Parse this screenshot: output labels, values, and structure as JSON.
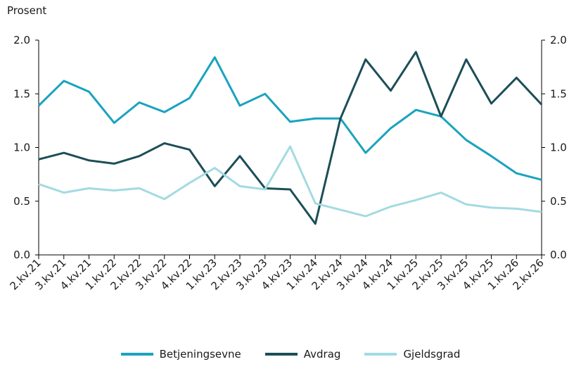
{
  "chart_data": {
    "type": "line",
    "ylabel": "Prosent",
    "ylim": [
      0,
      2.0
    ],
    "yticks": [
      "0.0",
      "0.5",
      "1.0",
      "1.5",
      "2.0"
    ],
    "secondary_yaxis": true,
    "grid": false,
    "legend_position": "bottom",
    "categories": [
      "2.kv.21",
      "3.kv.21",
      "4.kv.21",
      "1.kv.22",
      "2.kv.22",
      "3.kv.22",
      "4.kv.22",
      "1.kv.23",
      "2.kv.23",
      "3.kv.23",
      "4.kv.23",
      "1.kv.24",
      "2.kv.24",
      "3.kv.24",
      "4.kv.24",
      "1.kv.25",
      "2.kv.25",
      "3.kv.25",
      "4.kv.25",
      "1.kv.26",
      "2.kv.26"
    ],
    "series": [
      {
        "name": "Betjeningsevne",
        "color": "#1aa3bf",
        "values": [
          1.39,
          1.62,
          1.52,
          1.23,
          1.42,
          1.33,
          1.46,
          1.84,
          1.39,
          1.5,
          1.24,
          1.27,
          1.27,
          0.95,
          1.18,
          1.35,
          1.29,
          1.07,
          0.92,
          0.76,
          0.7
        ]
      },
      {
        "name": "Avdrag",
        "color": "#1c4e57",
        "values": [
          0.89,
          0.95,
          0.88,
          0.85,
          0.92,
          1.04,
          0.98,
          0.64,
          0.92,
          0.62,
          0.61,
          0.29,
          1.27,
          1.82,
          1.53,
          1.89,
          1.29,
          1.82,
          1.41,
          1.65,
          1.4
        ]
      },
      {
        "name": "Gjeldsgrad",
        "color": "#a2dbe1",
        "values": [
          0.66,
          0.58,
          0.62,
          0.6,
          0.62,
          0.52,
          0.67,
          0.81,
          0.64,
          0.61,
          1.01,
          0.48,
          0.42,
          0.36,
          0.45,
          0.51,
          0.58,
          0.47,
          0.44,
          0.43,
          0.4
        ]
      }
    ]
  }
}
